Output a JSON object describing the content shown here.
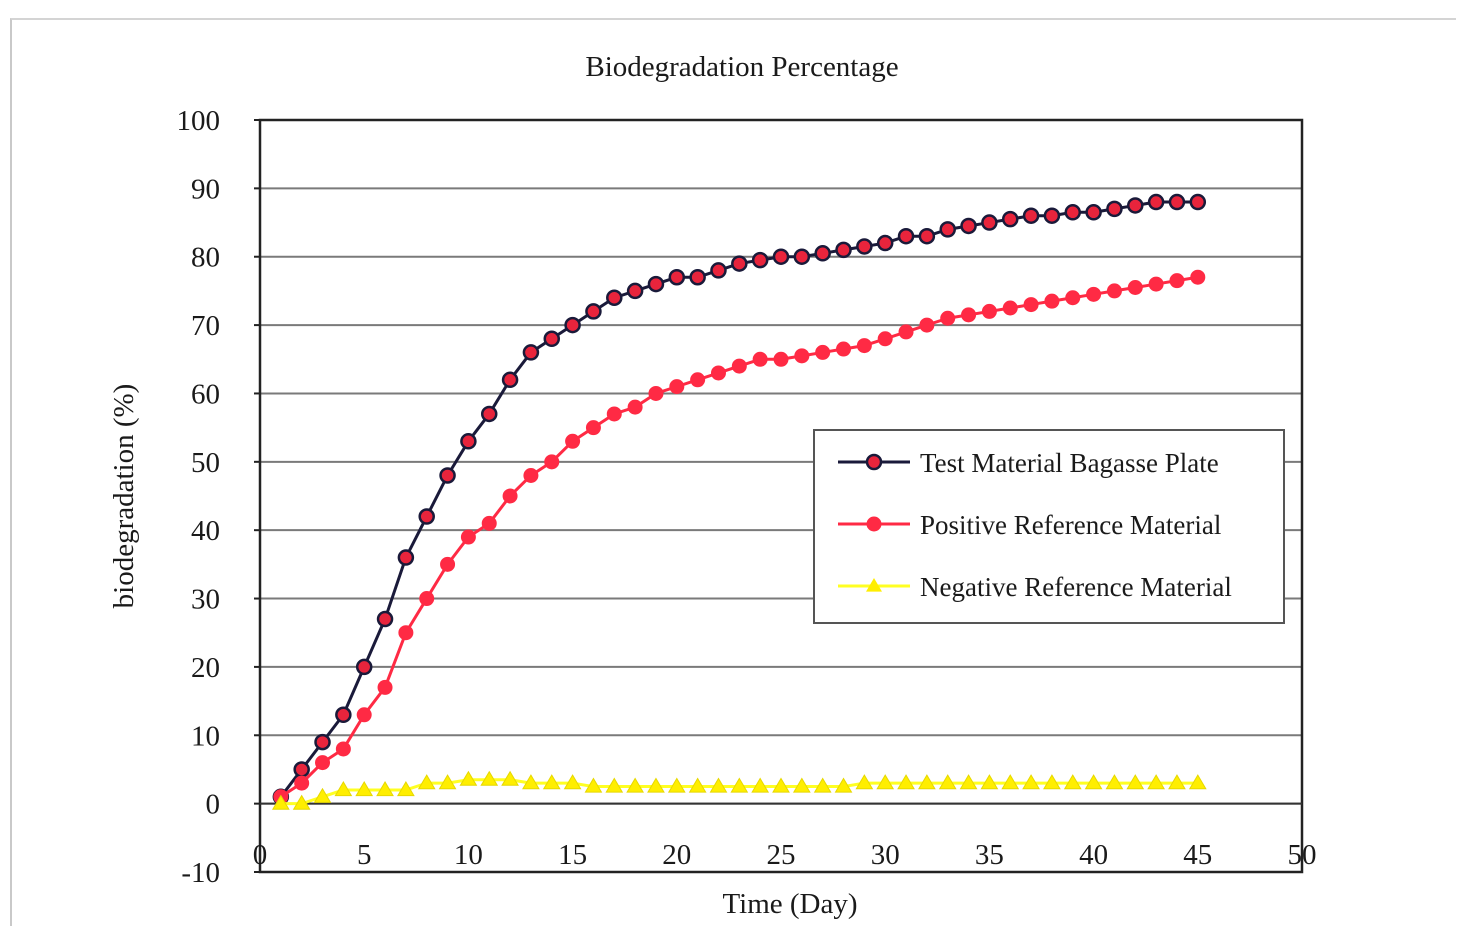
{
  "chart_data": {
    "type": "line",
    "title": "Biodegradation Percentage",
    "xlabel": "Time (Day)",
    "ylabel": "biodegradation (%)",
    "xlim": [
      0,
      50
    ],
    "ylim": [
      -10,
      100
    ],
    "xticks": [
      0,
      5,
      10,
      15,
      20,
      25,
      30,
      35,
      40,
      45,
      50
    ],
    "yticks": [
      -10,
      0,
      10,
      20,
      30,
      40,
      50,
      60,
      70,
      80,
      90,
      100
    ],
    "grid": "horizontal",
    "legend_position": "center-right",
    "x": [
      1,
      2,
      3,
      4,
      5,
      6,
      7,
      8,
      9,
      10,
      11,
      12,
      13,
      14,
      15,
      16,
      17,
      18,
      19,
      20,
      21,
      22,
      23,
      24,
      25,
      26,
      27,
      28,
      29,
      30,
      31,
      32,
      33,
      34,
      35,
      36,
      37,
      38,
      39,
      40,
      41,
      42,
      43,
      44,
      45
    ],
    "series": [
      {
        "name": "Test Material Bagasse Plate",
        "color": "#1a1a3a",
        "marker_color": "#e8243c",
        "marker": "circle",
        "values": [
          1,
          5,
          9,
          13,
          20,
          27,
          36,
          42,
          48,
          53,
          57,
          62,
          66,
          68,
          70,
          72,
          74,
          75,
          76,
          77,
          77,
          78,
          79,
          79.5,
          80,
          80,
          80.5,
          81,
          81.5,
          82,
          83,
          83,
          84,
          84.5,
          85,
          85.5,
          86,
          86,
          86.5,
          86.5,
          87,
          87.5,
          88,
          88,
          88
        ]
      },
      {
        "name": "Positive Reference Material",
        "color": "#ff2a44",
        "marker_color": "#ff2a44",
        "marker": "circle",
        "values": [
          1,
          3,
          6,
          8,
          13,
          17,
          25,
          30,
          35,
          39,
          41,
          45,
          48,
          50,
          53,
          55,
          57,
          58,
          60,
          61,
          62,
          63,
          64,
          65,
          65,
          65.5,
          66,
          66.5,
          67,
          68,
          69,
          70,
          71,
          71.5,
          72,
          72.5,
          73,
          73.5,
          74,
          74.5,
          75,
          75.5,
          76,
          76.5,
          77
        ]
      },
      {
        "name": "Negative Reference Material",
        "color": "#ffff22",
        "marker_color": "#ffee00",
        "marker": "triangle",
        "values": [
          0,
          0,
          1,
          2,
          2,
          2,
          2,
          3,
          3,
          3.5,
          3.5,
          3.5,
          3,
          3,
          3,
          2.5,
          2.5,
          2.5,
          2.5,
          2.5,
          2.5,
          2.5,
          2.5,
          2.5,
          2.5,
          2.5,
          2.5,
          2.5,
          3,
          3,
          3,
          3,
          3,
          3,
          3,
          3,
          3,
          3,
          3,
          3,
          3,
          3,
          3,
          3,
          3
        ]
      }
    ]
  }
}
